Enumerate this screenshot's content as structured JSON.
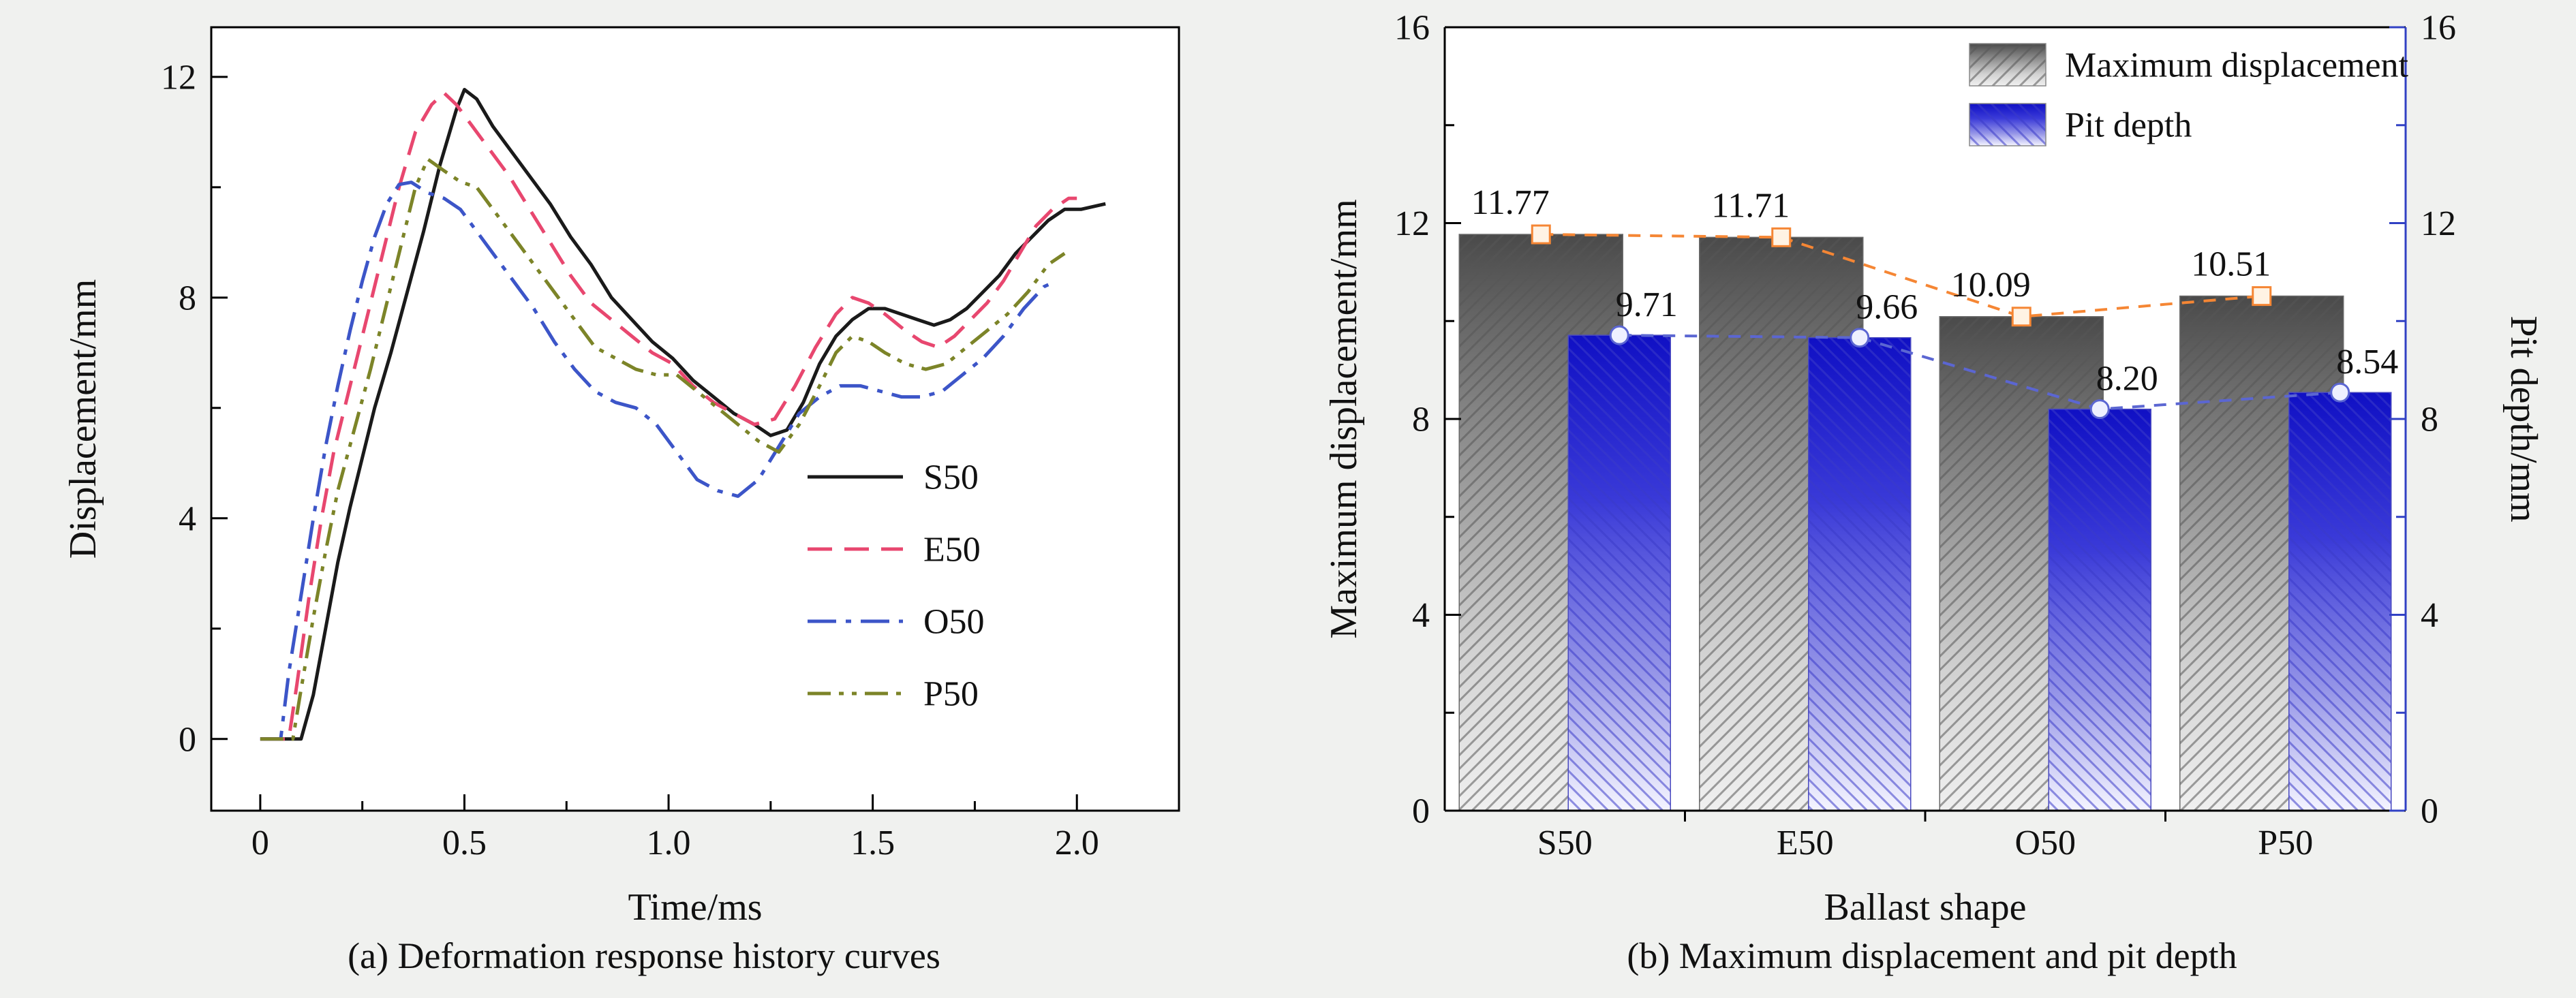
{
  "page": {
    "background": "#f0f1ef"
  },
  "captions": {
    "a": "(a) Deformation response history curves",
    "b": "(b) Maximum displacement and pit depth"
  },
  "chart_data": [
    {
      "type": "line",
      "title": "",
      "xlabel": "Time/ms",
      "ylabel": "Displacement/mm",
      "xlim": [
        -0.12,
        2.25
      ],
      "ylim": [
        -1.3,
        12.9
      ],
      "grid": false,
      "legend_position": "right-center",
      "axis_color": "#000000",
      "xticks": {
        "values": [
          0,
          0.5,
          1.0,
          1.5,
          2.0
        ],
        "labels": [
          "0",
          "0.5",
          "1.0",
          "1.5",
          "2.0"
        ],
        "minor": [
          0.25,
          0.75,
          1.25,
          1.75
        ]
      },
      "yticks": {
        "values": [
          0,
          4,
          8,
          12
        ],
        "labels": [
          "0",
          "4",
          "8",
          "12"
        ],
        "minor": [
          2,
          6,
          10
        ]
      },
      "series": [
        {
          "name": "S50",
          "color": "#1a1a1a",
          "dash": "solid",
          "points": [
            [
              0,
              0
            ],
            [
              0.1,
              0
            ],
            [
              0.13,
              0.8
            ],
            [
              0.16,
              2
            ],
            [
              0.19,
              3.2
            ],
            [
              0.22,
              4.2
            ],
            [
              0.25,
              5.1
            ],
            [
              0.28,
              6
            ],
            [
              0.32,
              7
            ],
            [
              0.36,
              8.1
            ],
            [
              0.4,
              9.2
            ],
            [
              0.44,
              10.4
            ],
            [
              0.48,
              11.4
            ],
            [
              0.5,
              11.77
            ],
            [
              0.53,
              11.6
            ],
            [
              0.57,
              11.1
            ],
            [
              0.61,
              10.7
            ],
            [
              0.66,
              10.2
            ],
            [
              0.71,
              9.7
            ],
            [
              0.76,
              9.1
            ],
            [
              0.81,
              8.6
            ],
            [
              0.86,
              8
            ],
            [
              0.91,
              7.6
            ],
            [
              0.96,
              7.2
            ],
            [
              1.01,
              6.9
            ],
            [
              1.06,
              6.5
            ],
            [
              1.11,
              6.2
            ],
            [
              1.16,
              5.9
            ],
            [
              1.21,
              5.7
            ],
            [
              1.25,
              5.5
            ],
            [
              1.29,
              5.6
            ],
            [
              1.33,
              6.1
            ],
            [
              1.37,
              6.8
            ],
            [
              1.41,
              7.3
            ],
            [
              1.45,
              7.6
            ],
            [
              1.49,
              7.8
            ],
            [
              1.53,
              7.8
            ],
            [
              1.57,
              7.7
            ],
            [
              1.61,
              7.6
            ],
            [
              1.65,
              7.5
            ],
            [
              1.69,
              7.6
            ],
            [
              1.73,
              7.8
            ],
            [
              1.77,
              8.1
            ],
            [
              1.81,
              8.4
            ],
            [
              1.85,
              8.8
            ],
            [
              1.89,
              9.1
            ],
            [
              1.93,
              9.4
            ],
            [
              1.97,
              9.6
            ],
            [
              2.01,
              9.6
            ],
            [
              2.07,
              9.7
            ]
          ]
        },
        {
          "name": "E50",
          "color": "#e8476f",
          "dash": "dashed",
          "points": [
            [
              0,
              0
            ],
            [
              0.07,
              0
            ],
            [
              0.09,
              1
            ],
            [
              0.12,
              2.6
            ],
            [
              0.15,
              4
            ],
            [
              0.18,
              5.2
            ],
            [
              0.22,
              6.4
            ],
            [
              0.26,
              7.6
            ],
            [
              0.3,
              8.8
            ],
            [
              0.34,
              10
            ],
            [
              0.38,
              11
            ],
            [
              0.42,
              11.5
            ],
            [
              0.45,
              11.71
            ],
            [
              0.48,
              11.5
            ],
            [
              0.52,
              11.1
            ],
            [
              0.56,
              10.7
            ],
            [
              0.61,
              10.2
            ],
            [
              0.66,
              9.6
            ],
            [
              0.71,
              9
            ],
            [
              0.76,
              8.4
            ],
            [
              0.81,
              7.9
            ],
            [
              0.86,
              7.6
            ],
            [
              0.91,
              7.3
            ],
            [
              0.96,
              7
            ],
            [
              1.01,
              6.8
            ],
            [
              1.06,
              6.4
            ],
            [
              1.11,
              6.1
            ],
            [
              1.16,
              5.9
            ],
            [
              1.21,
              5.7
            ],
            [
              1.26,
              5.8
            ],
            [
              1.31,
              6.4
            ],
            [
              1.36,
              7.1
            ],
            [
              1.41,
              7.7
            ],
            [
              1.45,
              8
            ],
            [
              1.49,
              7.9
            ],
            [
              1.53,
              7.7
            ],
            [
              1.58,
              7.4
            ],
            [
              1.62,
              7.2
            ],
            [
              1.66,
              7.1
            ],
            [
              1.7,
              7.3
            ],
            [
              1.74,
              7.6
            ],
            [
              1.78,
              7.9
            ],
            [
              1.82,
              8.3
            ],
            [
              1.86,
              8.8
            ],
            [
              1.9,
              9.3
            ],
            [
              1.94,
              9.6
            ],
            [
              1.98,
              9.8
            ],
            [
              2.0,
              9.8
            ]
          ]
        },
        {
          "name": "O50",
          "color": "#3c55c8",
          "dash": "dash-dot",
          "points": [
            [
              0,
              0
            ],
            [
              0.05,
              0
            ],
            [
              0.07,
              1.2
            ],
            [
              0.1,
              2.6
            ],
            [
              0.13,
              4
            ],
            [
              0.16,
              5.3
            ],
            [
              0.19,
              6.4
            ],
            [
              0.22,
              7.4
            ],
            [
              0.25,
              8.3
            ],
            [
              0.28,
              9.1
            ],
            [
              0.31,
              9.7
            ],
            [
              0.34,
              10.05
            ],
            [
              0.37,
              10.09
            ],
            [
              0.41,
              9.9
            ],
            [
              0.45,
              9.8
            ],
            [
              0.49,
              9.6
            ],
            [
              0.53,
              9.2
            ],
            [
              0.57,
              8.8
            ],
            [
              0.62,
              8.3
            ],
            [
              0.67,
              7.8
            ],
            [
              0.72,
              7.2
            ],
            [
              0.77,
              6.7
            ],
            [
              0.82,
              6.3
            ],
            [
              0.87,
              6.1
            ],
            [
              0.92,
              6
            ],
            [
              0.97,
              5.7
            ],
            [
              1.02,
              5.2
            ],
            [
              1.07,
              4.7
            ],
            [
              1.12,
              4.5
            ],
            [
              1.17,
              4.4
            ],
            [
              1.22,
              4.7
            ],
            [
              1.27,
              5.3
            ],
            [
              1.32,
              5.9
            ],
            [
              1.37,
              6.2
            ],
            [
              1.42,
              6.4
            ],
            [
              1.47,
              6.4
            ],
            [
              1.52,
              6.3
            ],
            [
              1.57,
              6.2
            ],
            [
              1.62,
              6.2
            ],
            [
              1.67,
              6.3
            ],
            [
              1.72,
              6.6
            ],
            [
              1.77,
              6.9
            ],
            [
              1.82,
              7.3
            ],
            [
              1.87,
              7.8
            ],
            [
              1.92,
              8.2
            ],
            [
              1.95,
              8.3
            ]
          ]
        },
        {
          "name": "P50",
          "color": "#7c8428",
          "dash": "dash-dot-dot",
          "points": [
            [
              0,
              0
            ],
            [
              0.08,
              0
            ],
            [
              0.1,
              0.9
            ],
            [
              0.13,
              2.2
            ],
            [
              0.16,
              3.4
            ],
            [
              0.19,
              4.5
            ],
            [
              0.23,
              5.6
            ],
            [
              0.27,
              6.7
            ],
            [
              0.31,
              7.9
            ],
            [
              0.35,
              9.1
            ],
            [
              0.38,
              10
            ],
            [
              0.41,
              10.51
            ],
            [
              0.45,
              10.3
            ],
            [
              0.49,
              10.1
            ],
            [
              0.53,
              10
            ],
            [
              0.57,
              9.6
            ],
            [
              0.62,
              9.1
            ],
            [
              0.67,
              8.6
            ],
            [
              0.72,
              8.1
            ],
            [
              0.77,
              7.6
            ],
            [
              0.82,
              7.1
            ],
            [
              0.87,
              6.9
            ],
            [
              0.92,
              6.7
            ],
            [
              0.97,
              6.6
            ],
            [
              1.02,
              6.6
            ],
            [
              1.07,
              6.3
            ],
            [
              1.12,
              6
            ],
            [
              1.17,
              5.7
            ],
            [
              1.22,
              5.4
            ],
            [
              1.27,
              5.2
            ],
            [
              1.32,
              5.7
            ],
            [
              1.37,
              6.4
            ],
            [
              1.41,
              7
            ],
            [
              1.45,
              7.3
            ],
            [
              1.49,
              7.2
            ],
            [
              1.53,
              7
            ],
            [
              1.58,
              6.8
            ],
            [
              1.63,
              6.7
            ],
            [
              1.68,
              6.8
            ],
            [
              1.73,
              7.1
            ],
            [
              1.78,
              7.4
            ],
            [
              1.83,
              7.7
            ],
            [
              1.88,
              8.1
            ],
            [
              1.93,
              8.6
            ],
            [
              1.97,
              8.8
            ]
          ]
        }
      ]
    },
    {
      "type": "bar",
      "title": "",
      "categories": [
        "S50",
        "E50",
        "O50",
        "P50"
      ],
      "xlabel": "Ballast shape",
      "ylabel_left": "Maximum displacement/mm",
      "ylabel_right": "Pit depth/mm",
      "ylim": [
        0,
        16
      ],
      "yticks": {
        "values": [
          0,
          4,
          8,
          12,
          16
        ],
        "labels": [
          "0",
          "4",
          "8",
          "12",
          "16"
        ],
        "minor": [
          2,
          6,
          10,
          14
        ]
      },
      "left_axis_color": "#000000",
      "right_axis_color": "#3141c4",
      "legend": [
        "Maximum displacement",
        "Pit depth"
      ],
      "series": [
        {
          "name": "Maximum displacement",
          "values": [
            11.77,
            11.71,
            10.09,
            10.51
          ],
          "labels": [
            "11.77",
            "11.71",
            "10.09",
            "10.51"
          ],
          "bar_colors": {
            "top": "#4a4a4a",
            "mid": "#8c8c8c",
            "low": "#d2d2d2",
            "bottom": "#f0f0f0"
          },
          "hatch": "/",
          "hatch_color": "#555555",
          "line_color": "#f58634",
          "marker": "square",
          "marker_fill": "#fff3e4"
        },
        {
          "name": "Pit depth",
          "values": [
            9.71,
            9.66,
            8.2,
            8.54
          ],
          "labels": [
            "9.71",
            "9.66",
            "8.20",
            "8.54"
          ],
          "bar_colors": {
            "top": "#1010c4",
            "mid": "#3a3ad8",
            "low": "#9898e8",
            "bottom": "#f5f5ff"
          },
          "hatch": "\\",
          "hatch_color": "#3a3ac8",
          "line_color": "#5b66d2",
          "marker": "circle",
          "marker_fill": "#eef0ff"
        }
      ]
    }
  ]
}
